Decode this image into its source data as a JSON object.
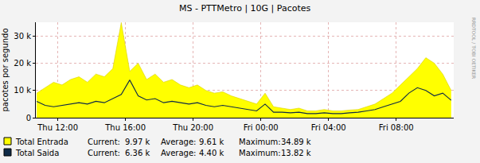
{
  "chart_data": {
    "type": "area",
    "title": "MS - PTTMetro | 10G | Pacotes",
    "y_label": "pacotes por segundo",
    "watermark": "RRDTOOL / TOBI OETIKER",
    "x": [
      10.75,
      11.25,
      11.75,
      12.25,
      12.75,
      13.25,
      13.75,
      14.25,
      14.75,
      15.25,
      15.75,
      16.25,
      16.75,
      17.25,
      17.75,
      18.25,
      18.75,
      19.25,
      19.75,
      20.25,
      20.75,
      21.25,
      21.75,
      22.25,
      22.75,
      23.25,
      23.75,
      24.25,
      24.75,
      25.25,
      25.75,
      26.25,
      26.75,
      27.25,
      27.75,
      28.25,
      28.75,
      29.25,
      29.75,
      30.25,
      30.75,
      31.25,
      31.75,
      32.25,
      32.75,
      33.25,
      33.75,
      34.25,
      34.75,
      35.25
    ],
    "xlim": [
      10.7,
      35.4
    ],
    "xticks": [
      {
        "value": 12,
        "label": "Thu 12:00"
      },
      {
        "value": 16,
        "label": "Thu 16:00"
      },
      {
        "value": 20,
        "label": "Thu 20:00"
      },
      {
        "value": 24,
        "label": "Fri 00:00"
      },
      {
        "value": 28,
        "label": "Fri 04:00"
      },
      {
        "value": 32,
        "label": "Fri 08:00"
      }
    ],
    "ylim": [
      0,
      35000
    ],
    "yticks": [
      0,
      {
        "value": 10000,
        "label": "10 k"
      },
      {
        "value": 20000,
        "label": "20 k"
      },
      {
        "value": 30000,
        "label": "30 k"
      }
    ],
    "grid": true,
    "series": [
      {
        "name": "Total Entrada",
        "type": "area",
        "color": "#ffff00",
        "values": [
          9000,
          11000,
          13000,
          12000,
          14000,
          15000,
          13000,
          16000,
          15000,
          18000,
          34890,
          17000,
          20000,
          14000,
          16000,
          13000,
          14000,
          12000,
          11000,
          12000,
          10000,
          9000,
          9500,
          8000,
          7000,
          6000,
          5000,
          9000,
          4000,
          3500,
          3000,
          3500,
          2500,
          2500,
          3000,
          2500,
          2500,
          2800,
          3000,
          4000,
          5000,
          7000,
          9000,
          12000,
          15000,
          18000,
          22000,
          20000,
          16000,
          9970
        ],
        "stats": [
          {
            "label": "Current:",
            "value": "9.97 k"
          },
          {
            "label": "Average:",
            "value": "9.61 k"
          },
          {
            "label": "Maximum:",
            "value": "34.89 k"
          }
        ]
      },
      {
        "name": "Total Saida",
        "type": "line",
        "color": "#0e2a47",
        "values": [
          6000,
          4500,
          4000,
          4500,
          5000,
          5500,
          5000,
          6000,
          5500,
          7000,
          8500,
          13820,
          8000,
          6500,
          7000,
          5500,
          6000,
          5500,
          5000,
          5500,
          4500,
          4000,
          4500,
          4000,
          3500,
          3000,
          2500,
          5000,
          2000,
          2000,
          1800,
          2000,
          1500,
          1500,
          1800,
          1500,
          1500,
          1800,
          2000,
          2500,
          3000,
          4000,
          5000,
          6000,
          9000,
          11000,
          10000,
          8000,
          9000,
          6360
        ],
        "stats": [
          {
            "label": "Current:",
            "value": "6.36 k"
          },
          {
            "label": "Average:",
            "value": "4.40 k"
          },
          {
            "label": "Maximum:",
            "value": "13.82 k"
          }
        ]
      }
    ]
  }
}
